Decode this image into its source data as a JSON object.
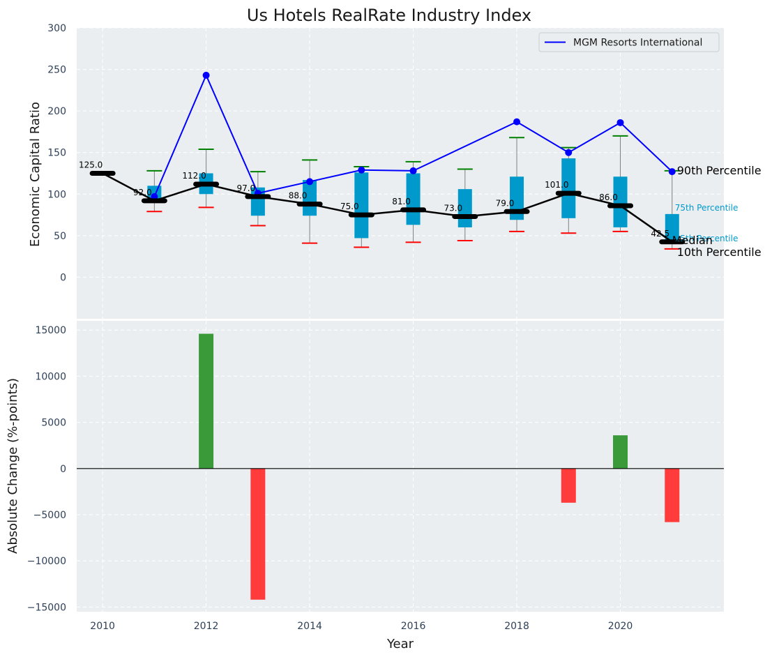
{
  "chart_data": [
    {
      "type": "box+line",
      "title": "Us Hotels RealRate Industry Index",
      "ylabel": "Economic Capital Ratio",
      "ylim": [
        -50,
        300
      ],
      "yticks": [
        0,
        50,
        100,
        150,
        200,
        250,
        300
      ],
      "xlim": [
        2009.5,
        2022.0
      ],
      "years": [
        2010,
        2011,
        2012,
        2013,
        2014,
        2015,
        2016,
        2017,
        2018,
        2019,
        2020,
        2021
      ],
      "median": [
        125.0,
        92.0,
        112.0,
        97.0,
        88.0,
        75.0,
        81.0,
        73.0,
        79.0,
        101.0,
        86.0,
        42.5
      ],
      "median_labels": [
        "125.0",
        "92.0",
        "112.0",
        "97.0",
        "88.0",
        "75.0",
        "81.0",
        "73.0",
        "79.0",
        "101.0",
        "86.0",
        "42.5"
      ],
      "p25": [
        null,
        92,
        100,
        74,
        74,
        47,
        63,
        60,
        69,
        71,
        60,
        45
      ],
      "p75": [
        null,
        110,
        125,
        108,
        117,
        126,
        125,
        106,
        121,
        143,
        121,
        76
      ],
      "p10": [
        null,
        79,
        84,
        62,
        41,
        36,
        42,
        44,
        55,
        53,
        55,
        34
      ],
      "p90": [
        null,
        128,
        154,
        127,
        141,
        133,
        139,
        130,
        168,
        156,
        170,
        128
      ],
      "company_series": {
        "name": "MGM Resorts International",
        "years": [
          2011,
          2012,
          2013,
          2014,
          2015,
          2016,
          2018,
          2019,
          2020,
          2021
        ],
        "values": [
          97,
          243,
          101,
          115,
          129,
          128,
          187,
          150,
          186,
          127
        ],
        "color": "#0000ff"
      },
      "legend": {
        "label": "MGM Resorts International",
        "placement": "top-right"
      },
      "annotations": {
        "p90": "90th Percentile",
        "p75": "75th Percentile",
        "median": "Median",
        "p25": "25th Percentile",
        "p10": "10th Percentile"
      },
      "colors": {
        "box": "#0099cc",
        "median": "#000000",
        "p90_cap": "#008000",
        "p10_cap": "#ff0000",
        "whisker": "#808080"
      },
      "grid": true
    },
    {
      "type": "bar",
      "ylabel": "Absolute Change (%-points)",
      "xlabel": "Year",
      "ylim": [
        -15500,
        16000
      ],
      "yticks": [
        -15000,
        -10000,
        -5000,
        0,
        5000,
        10000,
        15000
      ],
      "ytick_labels": [
        "−15000",
        "−10000",
        "−5000",
        "0",
        "5000",
        "10000",
        "15000"
      ],
      "xticks": [
        2010,
        2012,
        2014,
        2016,
        2018,
        2020
      ],
      "xtick_labels": [
        "2010",
        "2012",
        "2014",
        "2016",
        "2018",
        "2020"
      ],
      "bars": [
        {
          "year": 2012,
          "value": 14600
        },
        {
          "year": 2013,
          "value": -14200
        },
        {
          "year": 2019,
          "value": -3700
        },
        {
          "year": 2020,
          "value": 3600
        },
        {
          "year": 2021,
          "value": -5800
        }
      ],
      "colors": {
        "positive": "#3a9a3a",
        "negative": "#ff3b3b"
      },
      "grid": true
    }
  ]
}
